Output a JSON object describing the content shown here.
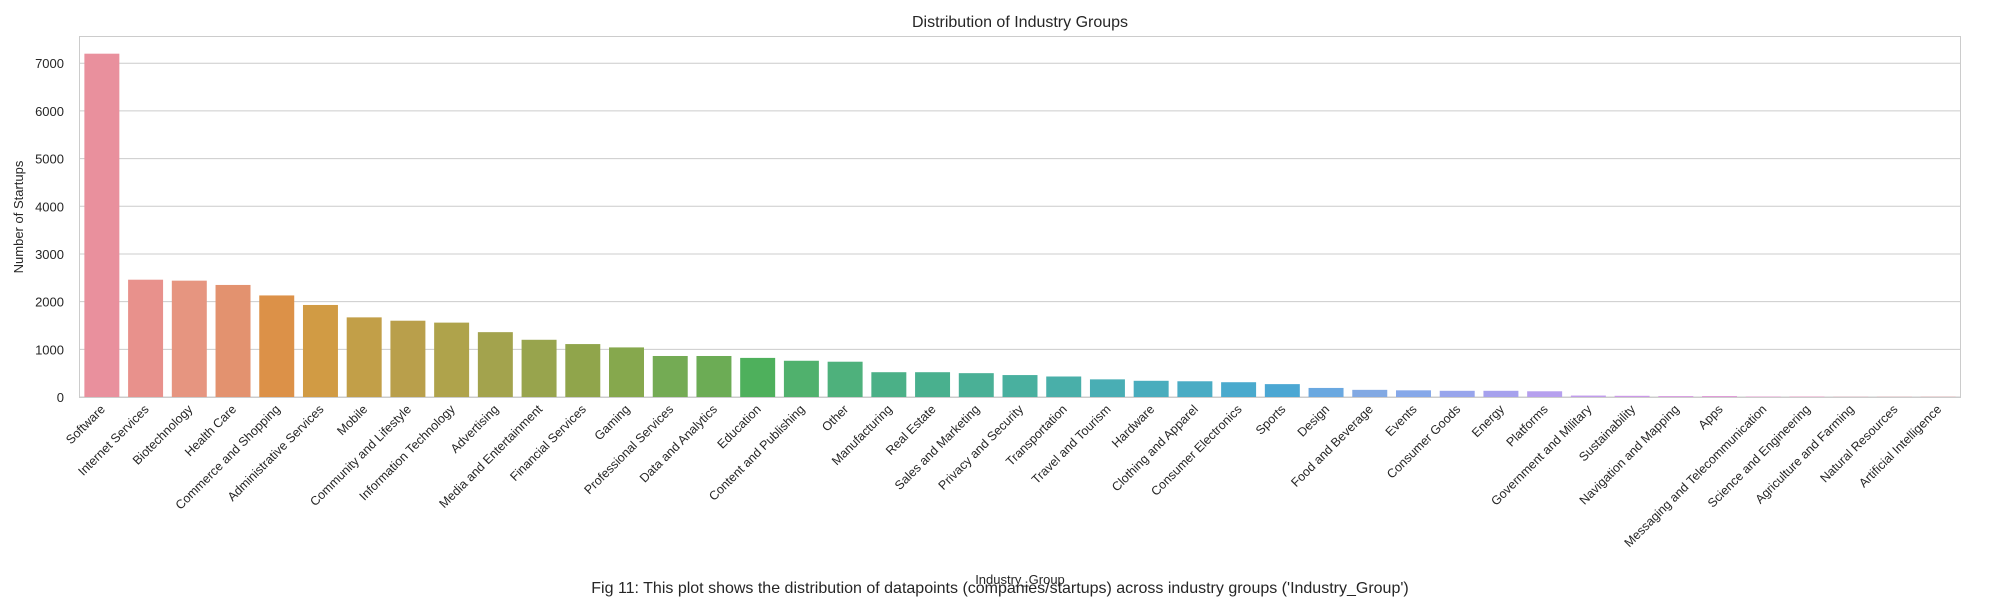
{
  "chart_data": {
    "type": "bar",
    "title": "Distribution of Industry Groups",
    "xlabel": "Industry_Group",
    "ylabel": "Number of Startups",
    "ylim": [
      0,
      7550
    ],
    "yticks": [
      0,
      1000,
      2000,
      3000,
      4000,
      5000,
      6000,
      7000
    ],
    "grid": "horizontal",
    "categories": [
      "Software",
      "Internet Services",
      "Biotechnology",
      "Health Care",
      "Commerce and Shopping",
      "Administrative Services",
      "Mobile",
      "Community and Lifestyle",
      "Information Technology",
      "Advertising",
      "Media and Entertainment",
      "Financial Services",
      "Gaming",
      "Professional Services",
      "Data and Analytics",
      "Education",
      "Content and Publishing",
      "Other",
      "Manufacturing",
      "Real Estate",
      "Sales and Marketing",
      "Privacy and Security",
      "Transportation",
      "Travel and Tourism",
      "Hardware",
      "Clothing and Apparel",
      "Consumer Electronics",
      "Sports",
      "Design",
      "Food and Beverage",
      "Events",
      "Consumer Goods",
      "Energy",
      "Platforms",
      "Government and Military",
      "Sustainability",
      "Navigation and Mapping",
      "Apps",
      "Messaging and Telecommunication",
      "Science and Engineering",
      "Agriculture and Farming",
      "Natural Resources",
      "Artificial Intelligence"
    ],
    "values": [
      7200,
      2460,
      2440,
      2350,
      2130,
      1930,
      1670,
      1600,
      1560,
      1360,
      1200,
      1110,
      1040,
      860,
      860,
      820,
      760,
      740,
      520,
      520,
      500,
      460,
      430,
      370,
      340,
      330,
      310,
      270,
      190,
      150,
      140,
      130,
      130,
      120,
      30,
      25,
      20,
      20,
      10,
      10,
      5,
      5,
      5
    ],
    "colors": [
      "#e9909d",
      "#e8918c",
      "#e69580",
      "#e3926f",
      "#dc9148",
      "#d19b44",
      "#c29f48",
      "#b99f4b",
      "#afa34b",
      "#a3a34d",
      "#98a44d",
      "#90a54b",
      "#86a84d",
      "#74ab54",
      "#6cac55",
      "#4eb05c",
      "#50b16d",
      "#4eb17c",
      "#4bb087",
      "#49b08e",
      "#4ab096",
      "#49b09f",
      "#49afa9",
      "#49aeb4",
      "#49adbd",
      "#4aacc4",
      "#4aaacd",
      "#4ba7d3",
      "#6aa8e0",
      "#82a9e3",
      "#86a8e9",
      "#98a5ec",
      "#a6a1ed",
      "#b6a0ee",
      "#c19bec",
      "#cc98e8",
      "#d89be1",
      "#df98d7",
      "#e498cd",
      "#e696c1",
      "#e99ab2",
      "#e99aa6",
      "#e99699"
    ]
  },
  "caption": "Fig 11: This plot shows the distribution of datapoints (companies/startups) across industry groups ('Industry_Group')"
}
